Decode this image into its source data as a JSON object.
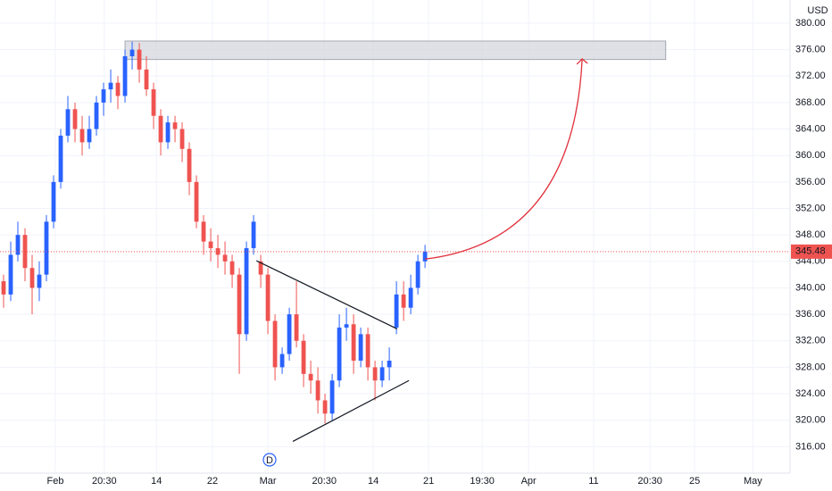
{
  "chart_data": {
    "type": "candlestick",
    "currency": "USD",
    "colors": {
      "up": "#2962ff",
      "down": "#ef5350",
      "grid": "#f0f3fa",
      "drawing": "#131722",
      "arrow": "#e0303b",
      "zone": "#d1d4dc"
    },
    "xlim": [
      -0.5,
      110.1
    ],
    "ylim": [
      312,
      383.5
    ],
    "xticks": [
      {
        "value": 7.25,
        "label": "Feb"
      },
      {
        "value": 14.1,
        "label": "20:30"
      },
      {
        "value": 21.4,
        "label": "14"
      },
      {
        "value": 29.25,
        "label": "22"
      },
      {
        "value": 37,
        "label": "Mar"
      },
      {
        "value": 44.9,
        "label": "20:30"
      },
      {
        "value": 51.75,
        "label": "14"
      },
      {
        "value": 59.5,
        "label": "21"
      },
      {
        "value": 67,
        "label": "19:30"
      },
      {
        "value": 73.5,
        "label": "Apr"
      },
      {
        "value": 82.6,
        "label": "11"
      },
      {
        "value": 90.5,
        "label": "20:30"
      },
      {
        "value": 96.75,
        "label": "25"
      },
      {
        "value": 104.9,
        "label": "May"
      }
    ],
    "yticks": [
      {
        "value": 316,
        "label": "316.00"
      },
      {
        "value": 320,
        "label": "320.00"
      },
      {
        "value": 324,
        "label": "324.00"
      },
      {
        "value": 328,
        "label": "328.00"
      },
      {
        "value": 332,
        "label": "332.00"
      },
      {
        "value": 336,
        "label": "336.00"
      },
      {
        "value": 340,
        "label": "340.00"
      },
      {
        "value": 344,
        "label": "344.00"
      },
      {
        "value": 348,
        "label": "348.00"
      },
      {
        "value": 352,
        "label": "352.00"
      },
      {
        "value": 356,
        "label": "356.00"
      },
      {
        "value": 360,
        "label": "360.00"
      },
      {
        "value": 364,
        "label": "364.00"
      },
      {
        "value": 368,
        "label": "368.00"
      },
      {
        "value": 372,
        "label": "372.00"
      },
      {
        "value": 376,
        "label": "376.00"
      },
      {
        "value": 380,
        "label": "380.00"
      }
    ],
    "open": [
      341,
      339,
      345,
      348,
      343,
      340,
      342,
      350,
      356,
      363,
      367,
      364,
      362,
      364,
      368,
      370,
      371,
      369,
      375,
      376,
      373,
      370,
      366,
      362,
      365,
      364,
      361,
      356,
      350,
      347,
      346,
      345,
      344,
      342,
      333,
      346,
      344,
      342,
      335,
      328,
      330,
      336,
      332,
      327,
      326,
      323,
      321,
      326,
      334,
      334.5,
      329,
      333,
      328,
      326,
      328,
      334,
      339,
      337,
      340,
      344
    ],
    "high": [
      342,
      347,
      350,
      349,
      345,
      344,
      351,
      357,
      364,
      369,
      368,
      366,
      366,
      369,
      371,
      373,
      372,
      376,
      377.2,
      377,
      375,
      371,
      367,
      366,
      366,
      365,
      362,
      357,
      351,
      349,
      348,
      347,
      345,
      343,
      347,
      351,
      345,
      343,
      336,
      331,
      337,
      341,
      333,
      329,
      328,
      324,
      327,
      336,
      337,
      336,
      334,
      334,
      329,
      329,
      331,
      341,
      341,
      342,
      345,
      346.5
    ],
    "low": [
      337,
      338,
      344,
      341,
      336,
      338,
      341,
      349,
      355,
      362,
      362,
      360,
      361,
      363,
      366,
      368,
      367,
      368,
      373,
      371,
      369,
      364,
      360,
      361,
      362,
      359,
      354,
      349,
      345,
      344,
      343,
      342,
      340,
      327,
      332,
      345,
      340,
      333,
      326,
      327,
      329,
      331,
      325,
      324,
      321,
      319.5,
      320,
      325,
      332,
      327,
      328,
      326,
      323,
      325,
      326,
      333,
      335,
      336,
      339,
      343
    ],
    "close": [
      339,
      345,
      348,
      343,
      340,
      342,
      350,
      356,
      363,
      367,
      364,
      362,
      364,
      368,
      370,
      371,
      369,
      375,
      376,
      373,
      370,
      366,
      362,
      365,
      364,
      361,
      356,
      350,
      347,
      346,
      345,
      344,
      342,
      333,
      346,
      350,
      342,
      335,
      328,
      330,
      336,
      332,
      327,
      326,
      323,
      321,
      326,
      334,
      334.5,
      329,
      333,
      328,
      326,
      328,
      329,
      339,
      337,
      340,
      344,
      345.48
    ],
    "last_price": 345.48,
    "zone": {
      "x": [
        17,
        92.7
      ],
      "y": [
        374.5,
        377.3
      ]
    },
    "trendlines": [
      {
        "x": [
          35.4,
          55.1
        ],
        "y": [
          344.1,
          333.8
        ]
      },
      {
        "x": [
          40.5,
          56.75
        ],
        "y": [
          316.8,
          326
        ]
      }
    ],
    "arrow": {
      "x": [
        59,
        81
      ],
      "y": [
        344.35,
        374.6
      ]
    },
    "event": {
      "label": "D",
      "x": 37.24
    }
  }
}
